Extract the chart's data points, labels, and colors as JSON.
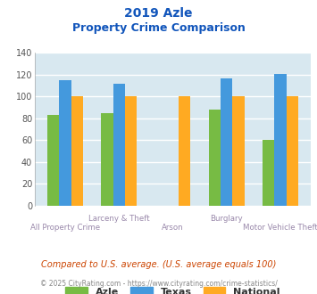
{
  "title_line1": "2019 Azle",
  "title_line2": "Property Crime Comparison",
  "categories": [
    "All Property Crime",
    "Larceny & Theft",
    "Arson",
    "Burglary",
    "Motor Vehicle Theft"
  ],
  "series": {
    "Azle": [
      83,
      85,
      0,
      88,
      60
    ],
    "Texas": [
      115,
      112,
      0,
      117,
      121
    ],
    "National": [
      100,
      100,
      100,
      100,
      100
    ]
  },
  "colors": {
    "Azle": "#77bb44",
    "Texas": "#4499dd",
    "National": "#ffaa22"
  },
  "ylim": [
    0,
    140
  ],
  "yticks": [
    0,
    20,
    40,
    60,
    80,
    100,
    120,
    140
  ],
  "bg_color": "#d8e8f0",
  "grid_color": "#ffffff",
  "title_color": "#1155bb",
  "xlabel_color": "#9988aa",
  "legend_label_color": "#333333",
  "footer_text1": "Compared to U.S. average. (U.S. average equals 100)",
  "footer_text2": "© 2025 CityRating.com - https://www.cityrating.com/crime-statistics/",
  "footer_color1": "#cc4400",
  "footer_color2": "#888888",
  "bar_width": 0.22
}
